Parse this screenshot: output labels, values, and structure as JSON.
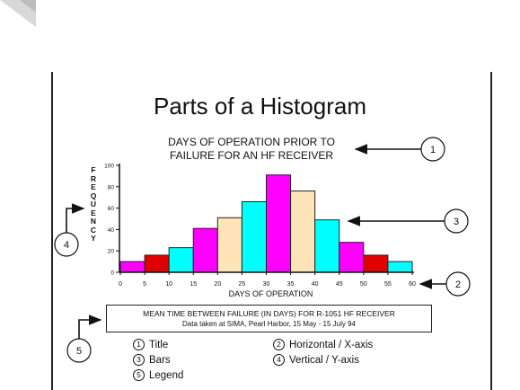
{
  "title": "Parts of a Histogram",
  "subtitle_lines": [
    "DAYS OF OPERATION PRIOR TO",
    "FAILURE FOR AN HF RECEIVER"
  ],
  "y_axis_label": "FREQUENCY",
  "x_axis_label": "DAYS OF OPERATION",
  "legend_box": {
    "line1": "MEAN TIME BETWEEN FAILURE (IN DAYS) FOR R-1051 HF RECEIVER",
    "line2": "Data taken at SIMA, Pearl Harbor, 15 May - 15 July 94"
  },
  "callouts": [
    "1",
    "2",
    "3",
    "4",
    "5"
  ],
  "key": [
    {
      "num": "1",
      "label": "Title"
    },
    {
      "num": "2",
      "label": "Horizontal / X-axis"
    },
    {
      "num": "3",
      "label": "Bars"
    },
    {
      "num": "4",
      "label": "Vertical / Y-axis"
    },
    {
      "num": "5",
      "label": "Legend"
    }
  ],
  "colors": {
    "magenta": "#ff00ff",
    "red": "#e00000",
    "cyan": "#00ffff",
    "peach": "#ffe4b8"
  },
  "chart_data": {
    "type": "bar",
    "x_ticks": [
      "0",
      "5",
      "10",
      "15",
      "20",
      "25",
      "30",
      "35",
      "40",
      "45",
      "50",
      "55",
      "60"
    ],
    "y_ticks": [
      "0",
      "20",
      "40",
      "60",
      "80",
      "100"
    ],
    "ylim": [
      0,
      100
    ],
    "xlim": [
      0,
      60
    ],
    "bin_width": 5,
    "bins": [
      {
        "start": 0,
        "value": 10,
        "color": "magenta"
      },
      {
        "start": 5,
        "value": 16,
        "color": "red"
      },
      {
        "start": 10,
        "value": 23,
        "color": "cyan"
      },
      {
        "start": 15,
        "value": 41,
        "color": "magenta"
      },
      {
        "start": 20,
        "value": 51,
        "color": "peach"
      },
      {
        "start": 25,
        "value": 66,
        "color": "cyan"
      },
      {
        "start": 30,
        "value": 91,
        "color": "magenta"
      },
      {
        "start": 35,
        "value": 76,
        "color": "peach"
      },
      {
        "start": 40,
        "value": 49,
        "color": "cyan"
      },
      {
        "start": 45,
        "value": 28,
        "color": "magenta"
      },
      {
        "start": 50,
        "value": 16,
        "color": "red"
      },
      {
        "start": 55,
        "value": 10,
        "color": "cyan"
      }
    ]
  }
}
